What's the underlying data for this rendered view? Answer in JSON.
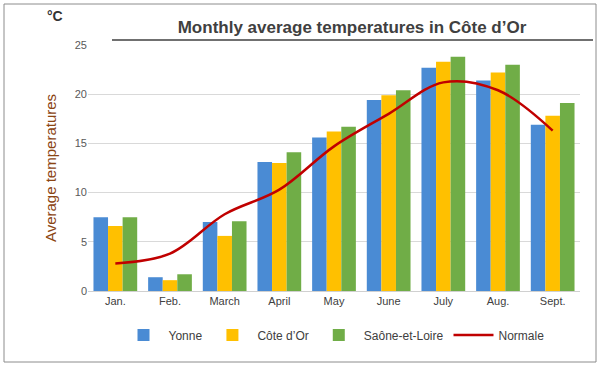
{
  "chart_data": {
    "type": "bar",
    "title": "Monthly average temperatures in Côte d’Or",
    "y_label": "Average temperatures",
    "annotations": [
      {
        "text": "°C"
      }
    ],
    "categories": [
      "Jan.",
      "Feb.",
      "March",
      "April",
      "May",
      "June",
      "July",
      "Aug.",
      "Sept."
    ],
    "series": [
      {
        "name": "Yonne",
        "type": "bar",
        "color": "#4a8bd4",
        "values": [
          7.5,
          1.4,
          7.0,
          13.1,
          15.6,
          19.4,
          22.7,
          21.4,
          16.9
        ]
      },
      {
        "name": "Côte d’Or",
        "type": "bar",
        "color": "#ffc000",
        "values": [
          6.6,
          1.1,
          5.6,
          13.0,
          16.2,
          19.9,
          23.3,
          22.2,
          17.8
        ]
      },
      {
        "name": "Saône-et-Loire",
        "type": "bar",
        "color": "#70ad47",
        "values": [
          7.5,
          1.7,
          7.1,
          14.1,
          16.7,
          20.4,
          23.8,
          23.0,
          19.1
        ]
      },
      {
        "name": "Normale",
        "type": "line",
        "color": "#c00000",
        "line_style": "smooth",
        "values": [
          2.8,
          3.8,
          7.8,
          10.3,
          14.7,
          18.0,
          21.2,
          20.4,
          16.3
        ]
      }
    ],
    "ylim": [
      0,
      25
    ],
    "yticks": [
      0,
      5,
      10,
      15,
      20,
      25
    ],
    "grid": true,
    "legend": "bottom"
  }
}
